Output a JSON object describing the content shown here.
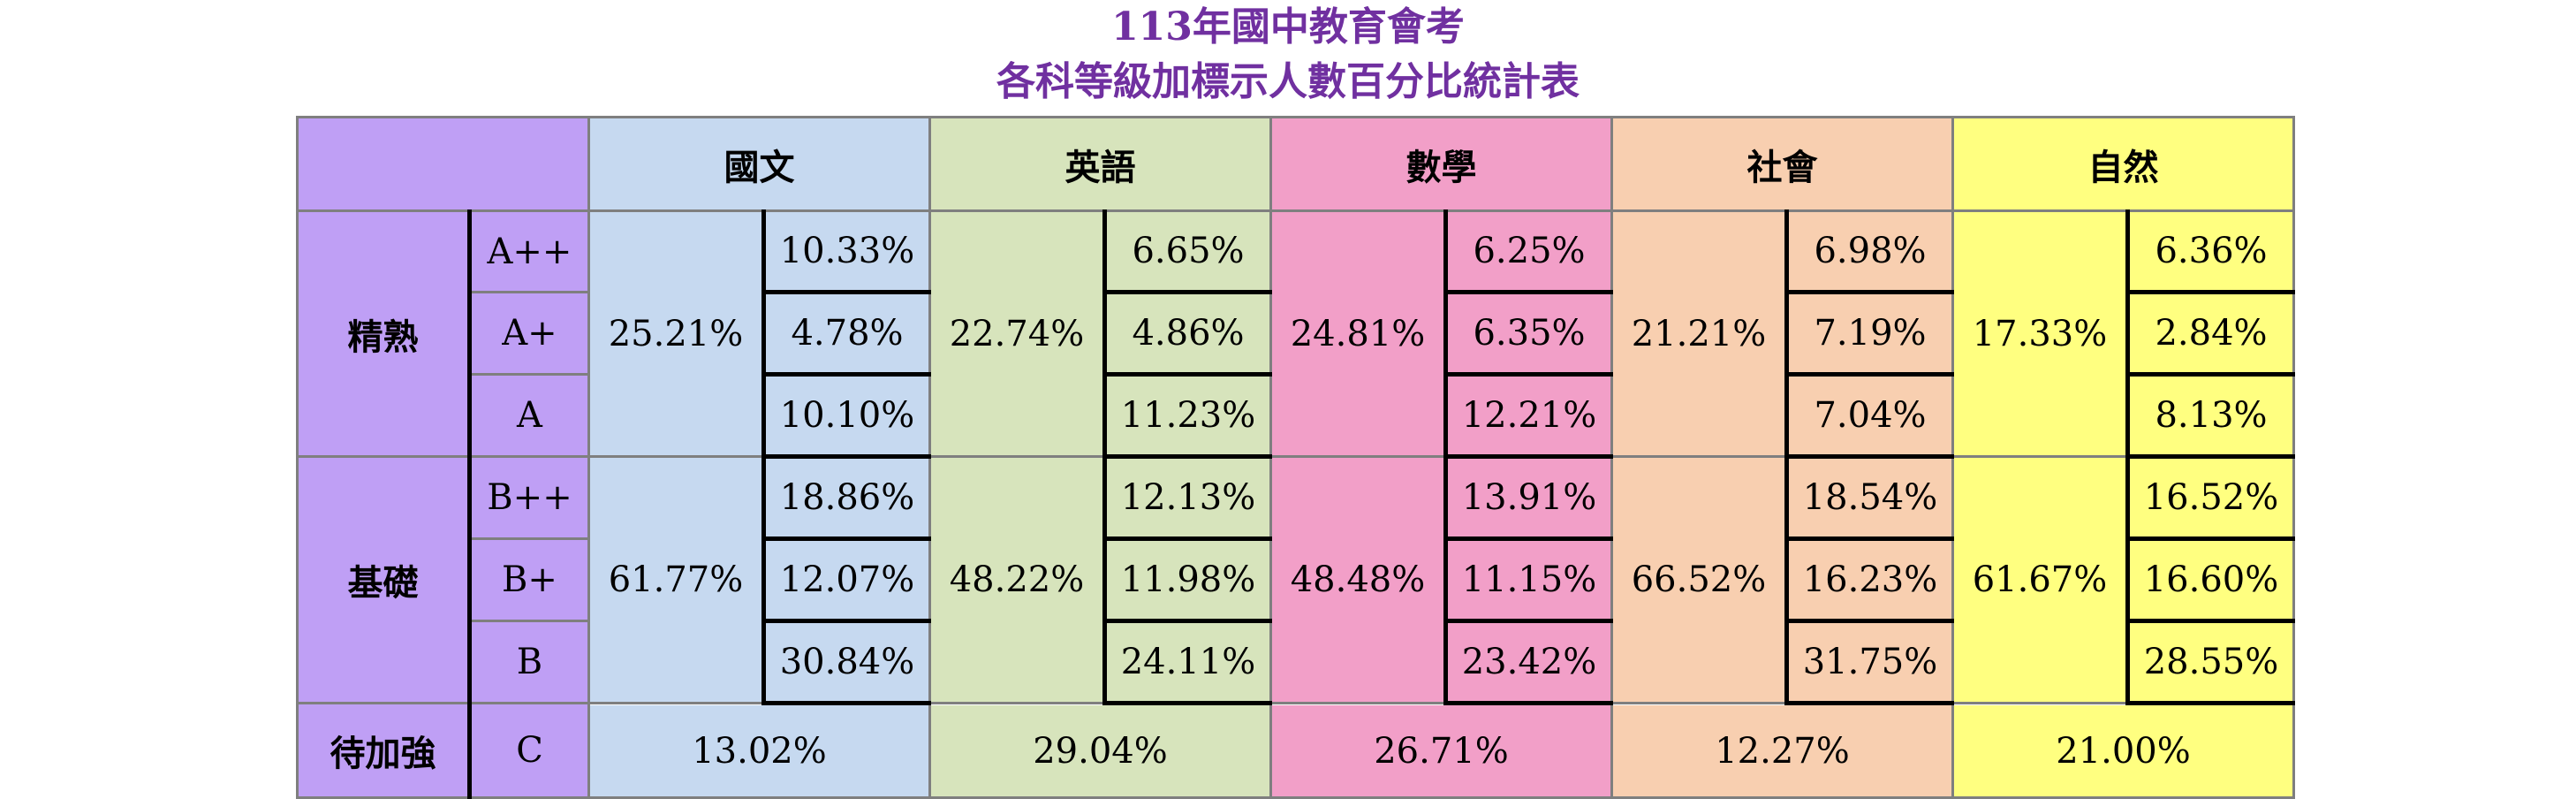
{
  "title_line1": "113年國中教育會考",
  "title_line2": "各科等級加標示人數百分比統計表",
  "subjects": [
    {
      "name": "國文",
      "color": "#C6D9F0"
    },
    {
      "name": "英語",
      "color": "#D7E4BC"
    },
    {
      "name": "數學",
      "color": "#F29FC8"
    },
    {
      "name": "社會",
      "color": "#F8CFB0"
    },
    {
      "name": "自然",
      "color": "#FFFF80"
    }
  ],
  "label_color": "#BF9FF5",
  "title_color": "#7030A0",
  "groups": {
    "proficient": {
      "label": "精熟",
      "levels": [
        "A++",
        "A+",
        "A"
      ],
      "totals": [
        "25.21%",
        "22.74%",
        "24.81%",
        "21.21%",
        "17.33%"
      ],
      "values": [
        [
          "10.33%",
          "6.65%",
          "6.25%",
          "6.98%",
          "6.36%"
        ],
        [
          "4.78%",
          "4.86%",
          "6.35%",
          "7.19%",
          "2.84%"
        ],
        [
          "10.10%",
          "11.23%",
          "12.21%",
          "7.04%",
          "8.13%"
        ]
      ]
    },
    "basic": {
      "label": "基礎",
      "levels": [
        "B++",
        "B+",
        "B"
      ],
      "totals": [
        "61.77%",
        "48.22%",
        "48.48%",
        "66.52%",
        "61.67%"
      ],
      "values": [
        [
          "18.86%",
          "12.13%",
          "13.91%",
          "18.54%",
          "16.52%"
        ],
        [
          "12.07%",
          "11.98%",
          "11.15%",
          "16.23%",
          "16.60%"
        ],
        [
          "30.84%",
          "24.11%",
          "23.42%",
          "31.75%",
          "28.55%"
        ]
      ]
    },
    "needs_improvement": {
      "label": "待加強",
      "level": "C",
      "values": [
        "13.02%",
        "29.04%",
        "26.71%",
        "12.27%",
        "21.00%"
      ]
    }
  }
}
